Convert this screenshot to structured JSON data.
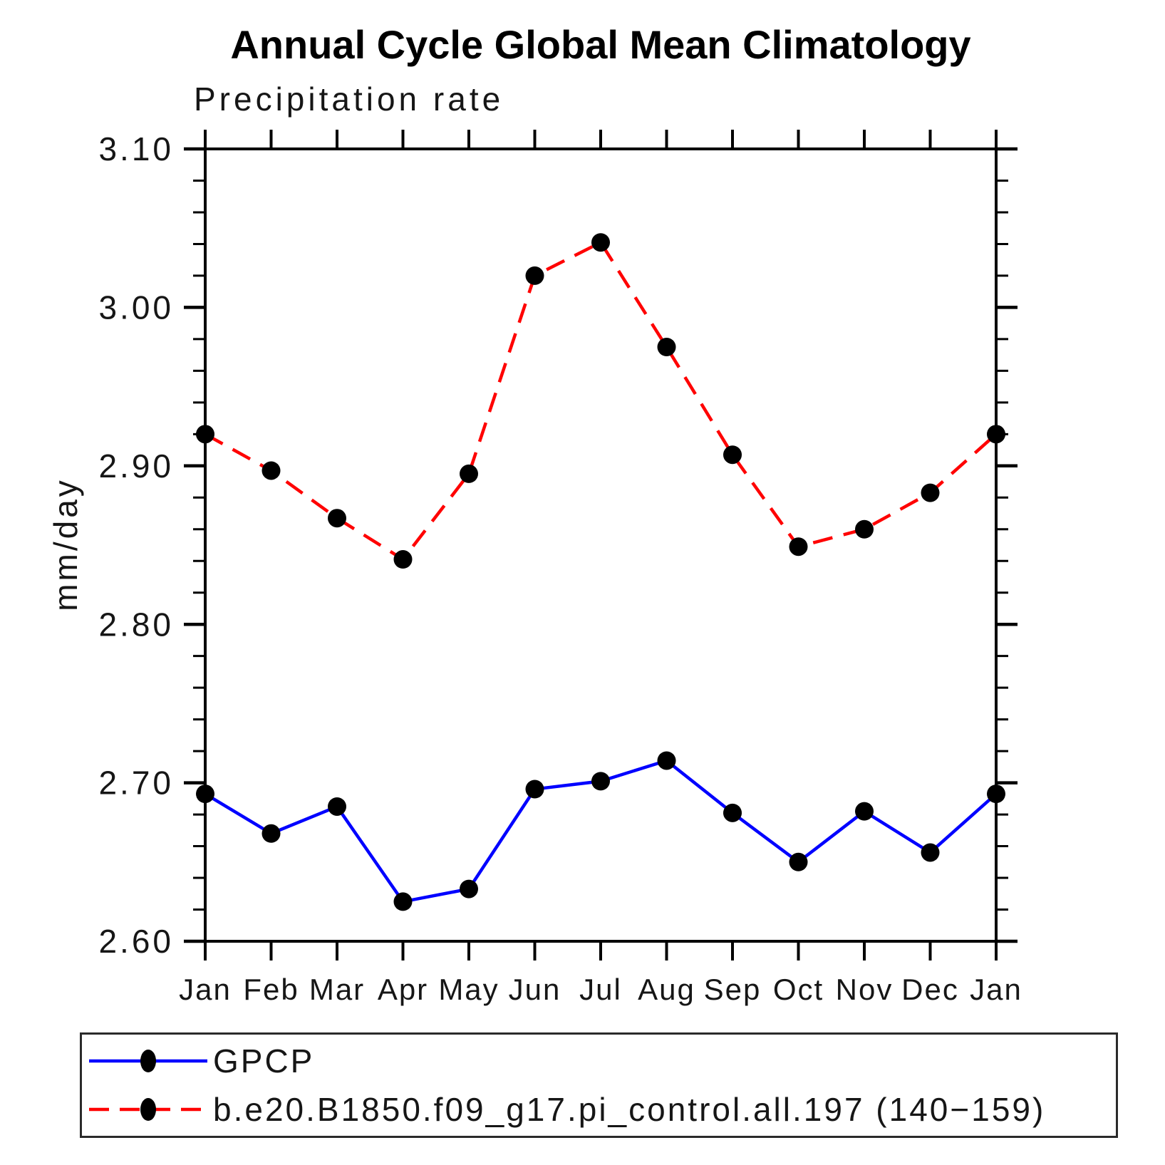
{
  "chart_data": {
    "type": "line",
    "title": "Annual Cycle Global Mean Climatology",
    "subtitle": "Precipitation rate",
    "ylabel": "mm/day",
    "categories": [
      "Jan",
      "Feb",
      "Mar",
      "Apr",
      "May",
      "Jun",
      "Jul",
      "Aug",
      "Sep",
      "Oct",
      "Nov",
      "Dec",
      "Jan"
    ],
    "series": [
      {
        "name": "GPCP",
        "color": "#0000ff",
        "line_style": "solid",
        "marker": "filled-circle",
        "marker_color": "#000000",
        "values": [
          2.693,
          2.668,
          2.685,
          2.625,
          2.633,
          2.696,
          2.701,
          2.714,
          2.681,
          2.65,
          2.682,
          2.656,
          2.693
        ]
      },
      {
        "name": "b.e20.B1850.f09_g17.pi_control.all.197 (140−159)",
        "color": "#ff0000",
        "line_style": "dashed",
        "marker": "filled-circle",
        "marker_color": "#000000",
        "values": [
          2.92,
          2.897,
          2.867,
          2.841,
          2.895,
          3.02,
          3.041,
          2.975,
          2.907,
          2.849,
          2.86,
          2.883,
          2.92
        ]
      }
    ],
    "ylim": [
      2.6,
      3.1
    ],
    "yticks": [
      2.6,
      2.7,
      2.8,
      2.9,
      3.0,
      3.1
    ],
    "ytick_labels": [
      "2.60",
      "2.70",
      "2.80",
      "2.90",
      "3.00",
      "3.10"
    ],
    "y_minor_step": 0.02,
    "grid": false,
    "legend_position": "bottom-left-box",
    "axis_color": "#000000"
  }
}
